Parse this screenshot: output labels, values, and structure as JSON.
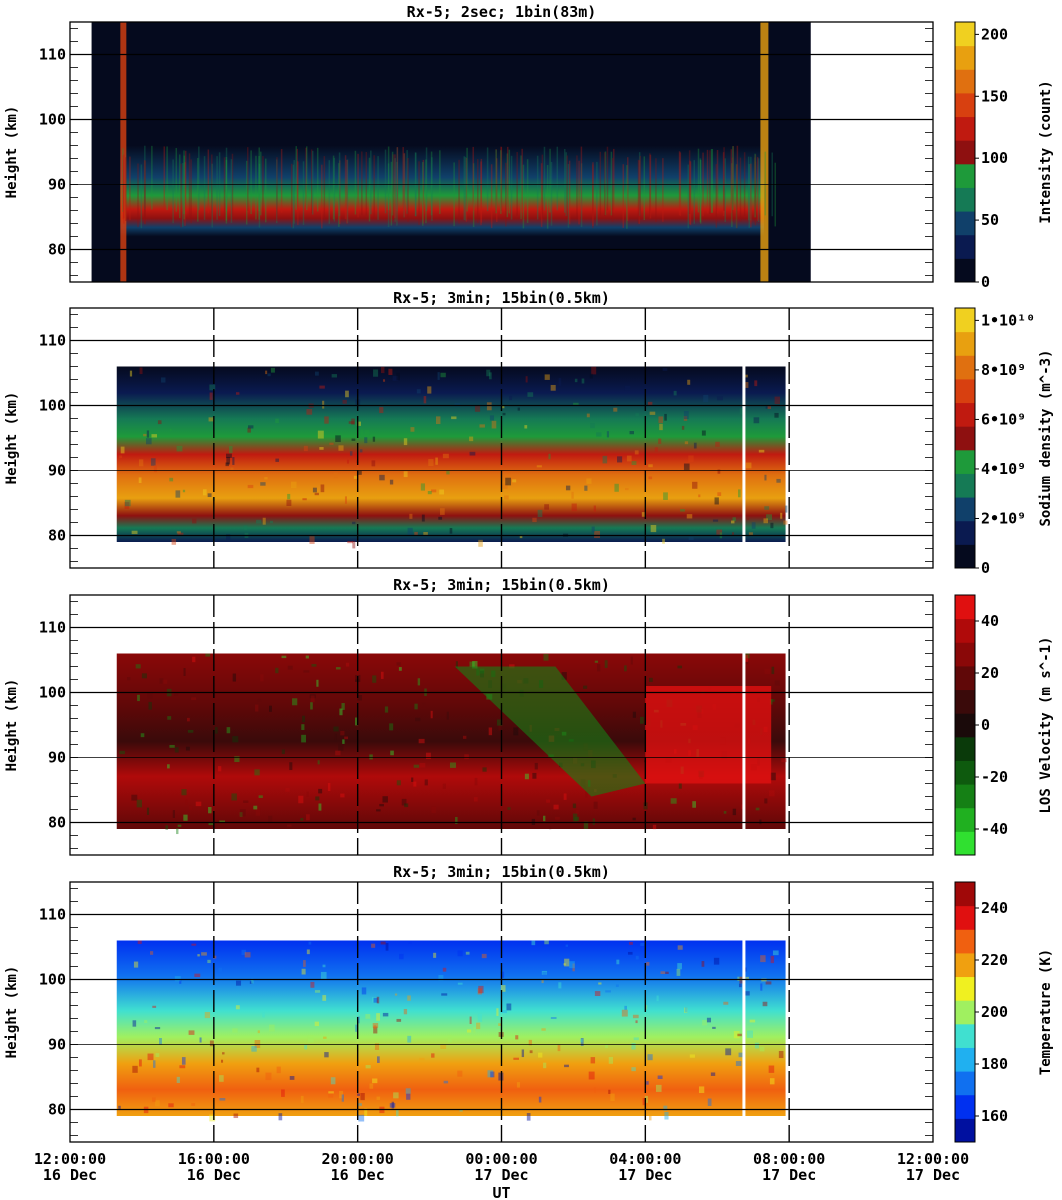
{
  "figure": {
    "xlabel": "UT",
    "x_ticks": [
      {
        "time": "12:00:00",
        "date": "16 Dec"
      },
      {
        "time": "16:00:00",
        "date": "16 Dec"
      },
      {
        "time": "20:00:00",
        "date": "16 Dec"
      },
      {
        "time": "00:00:00",
        "date": "17 Dec"
      },
      {
        "time": "04:00:00",
        "date": "17 Dec"
      },
      {
        "time": "08:00:00",
        "date": "17 Dec"
      },
      {
        "time": "12:00:00",
        "date": "17 Dec"
      }
    ]
  },
  "chart_data": [
    {
      "type": "heatmap",
      "title": "Rx-5;  2sec; 1bin(83m)",
      "ylabel": "Height (km)",
      "xlim_hours": [
        0,
        24
      ],
      "ylim": [
        75,
        115
      ],
      "y_ticks": [
        80,
        90,
        100,
        110
      ],
      "data_window_hours": [
        0.6,
        20.6
      ],
      "layer_height_km": [
        82,
        96
      ],
      "colorbar": {
        "label": "Intensity (count)",
        "range": [
          0,
          210
        ],
        "ticks": [
          {
            "v": 0,
            "label": "0"
          },
          {
            "v": 50,
            "label": "50"
          },
          {
            "v": 100,
            "label": "100"
          },
          {
            "v": 150,
            "label": "150"
          },
          {
            "v": 200,
            "label": "200"
          }
        ],
        "colors": [
          "#050a1e",
          "#0a1a50",
          "#10406a",
          "#157a55",
          "#1e9a3a",
          "#8e1010",
          "#c01a10",
          "#d84010",
          "#e07010",
          "#e8a010",
          "#f0d020"
        ]
      }
    },
    {
      "type": "heatmap",
      "title": "Rx-5; 3min; 15bin(0.5km)",
      "ylabel": "Height (km)",
      "xlim_hours": [
        0,
        24
      ],
      "ylim": [
        75,
        115
      ],
      "y_ticks": [
        80,
        90,
        100,
        110
      ],
      "data_window_hours": [
        1.3,
        19.9
      ],
      "layer_height_km": [
        79,
        106
      ],
      "colorbar": {
        "label": "Sodium density (m^-3)",
        "range": [
          0,
          10.5
        ],
        "ticks": [
          {
            "v": 0,
            "label": "0"
          },
          {
            "v": 2,
            "label": "2•10⁹"
          },
          {
            "v": 4,
            "label": "4•10⁹"
          },
          {
            "v": 6,
            "label": "6•10⁹"
          },
          {
            "v": 8,
            "label": "8•10⁹"
          },
          {
            "v": 10,
            "label": "1•10¹⁰"
          }
        ],
        "colors": [
          "#050a1e",
          "#0a1a50",
          "#10406a",
          "#157a55",
          "#1e9a3a",
          "#8e1010",
          "#c01a10",
          "#d84010",
          "#e07010",
          "#e8a010",
          "#f0d020"
        ]
      }
    },
    {
      "type": "heatmap",
      "title": "Rx-5; 3min; 15bin(0.5km)",
      "ylabel": "Height (km)",
      "xlim_hours": [
        0,
        24
      ],
      "ylim": [
        75,
        115
      ],
      "y_ticks": [
        80,
        90,
        100,
        110
      ],
      "data_window_hours": [
        1.3,
        19.9
      ],
      "layer_height_km": [
        79,
        106
      ],
      "colorbar": {
        "label": "LOS Velocity (m s^-1)",
        "range": [
          -50,
          50
        ],
        "ticks": [
          {
            "v": -40,
            "label": "-40"
          },
          {
            "v": -20,
            "label": "-20"
          },
          {
            "v": 0,
            "label": "0"
          },
          {
            "v": 20,
            "label": "20"
          },
          {
            "v": 40,
            "label": "40"
          }
        ],
        "colors": [
          "#30e030",
          "#20b020",
          "#158015",
          "#0e5a0e",
          "#0a3a0a",
          "#1a0a0a",
          "#3a0a0a",
          "#600808",
          "#8a0808",
          "#b00a0a",
          "#e01010"
        ]
      }
    },
    {
      "type": "heatmap",
      "title": "Rx-5; 3min; 15bin(0.5km)",
      "ylabel": "Height (km)",
      "xlim_hours": [
        0,
        24
      ],
      "ylim": [
        75,
        115
      ],
      "y_ticks": [
        80,
        90,
        100,
        110
      ],
      "data_window_hours": [
        1.3,
        19.9
      ],
      "layer_height_km": [
        79,
        106
      ],
      "colorbar": {
        "label": "Temperature (K)",
        "range": [
          150,
          250
        ],
        "ticks": [
          {
            "v": 160,
            "label": "160"
          },
          {
            "v": 180,
            "label": "180"
          },
          {
            "v": 200,
            "label": "200"
          },
          {
            "v": 220,
            "label": "220"
          },
          {
            "v": 240,
            "label": "240"
          }
        ],
        "colors": [
          "#0010a0",
          "#0030f0",
          "#1070f0",
          "#20b0f0",
          "#40e0d0",
          "#a0f060",
          "#f0f020",
          "#f0a010",
          "#f06010",
          "#e01010",
          "#a00808"
        ]
      }
    }
  ]
}
